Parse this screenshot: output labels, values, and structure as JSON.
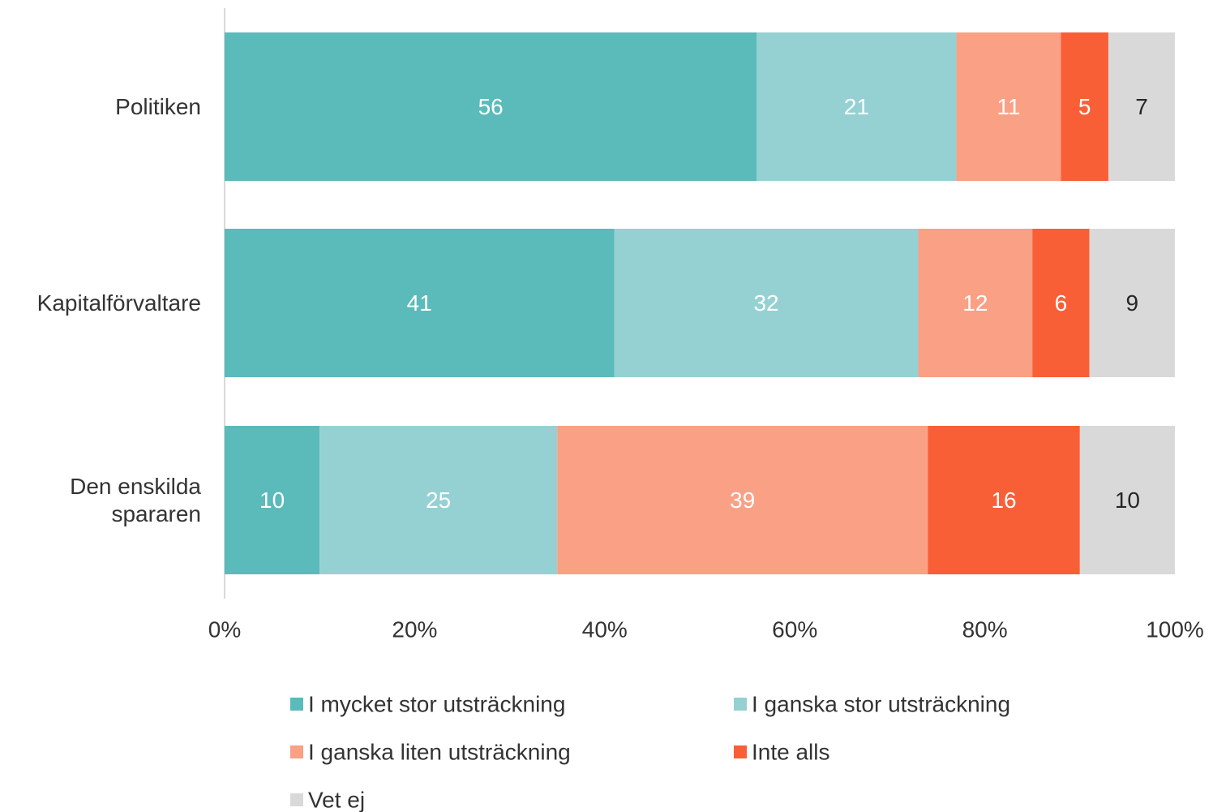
{
  "chart_data": {
    "type": "stacked-bar-horizontal",
    "categories": [
      "Politiken",
      "Kapitalförvaltare",
      "Den enskilda spararen"
    ],
    "series": [
      {
        "name": "I mycket stor utsträckning",
        "color": "#5bbaba",
        "label_color": "#ffffff",
        "values": [
          56,
          41,
          10
        ]
      },
      {
        "name": "I ganska stor utsträckning",
        "color": "#95d1d3",
        "label_color": "#ffffff",
        "values": [
          21,
          32,
          25
        ]
      },
      {
        "name": "I ganska liten utsträckning",
        "color": "#f9a085",
        "label_color": "#ffffff",
        "values": [
          11,
          12,
          39
        ]
      },
      {
        "name": "Inte alls",
        "color": "#f95f36",
        "label_color": "#ffffff",
        "values": [
          5,
          6,
          16
        ]
      },
      {
        "name": "Vet ej",
        "color": "#d9d9d9",
        "label_color": "#262626",
        "values": [
          7,
          9,
          10
        ]
      }
    ],
    "xlim": [
      0,
      100
    ],
    "xticks": [
      {
        "value": 0,
        "label": "0%"
      },
      {
        "value": 20,
        "label": "20%"
      },
      {
        "value": 40,
        "label": "40%"
      },
      {
        "value": 60,
        "label": "60%"
      },
      {
        "value": 80,
        "label": "80%"
      },
      {
        "value": 100,
        "label": "100%"
      }
    ],
    "grid": false,
    "legend": "bottom"
  }
}
